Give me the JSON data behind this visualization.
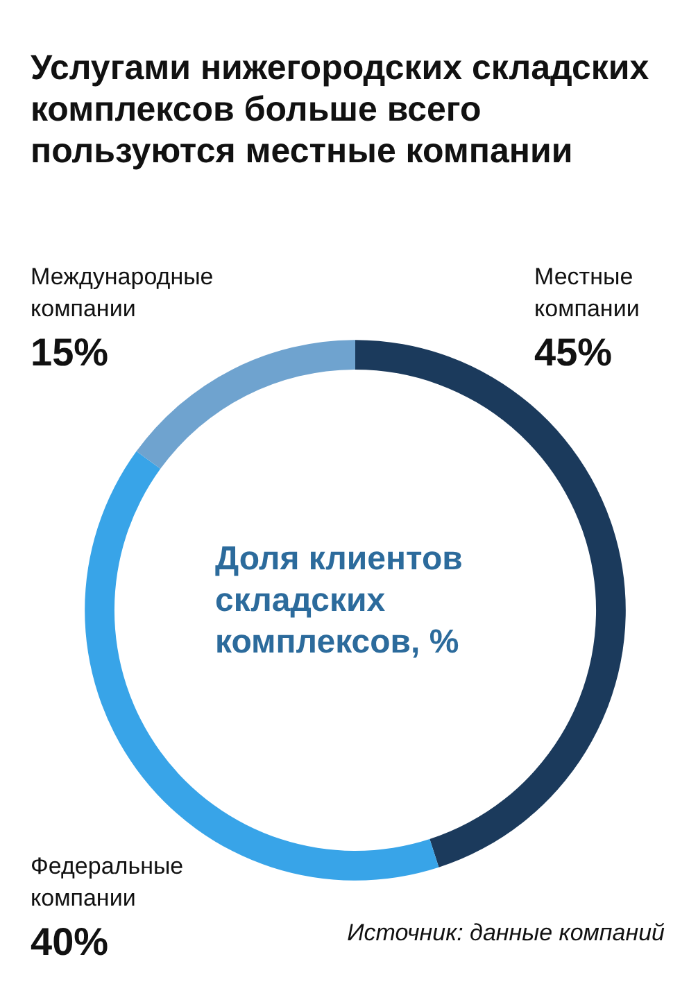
{
  "chart_data": {
    "type": "donut",
    "title": "Услугами нижегородских складских комплексов больше всего пользуются местные компании",
    "subtitle": "Доля клиентов складских комплексов, %",
    "categories": [
      "Местные компании",
      "Федеральные компании",
      "Международные компании"
    ],
    "values": [
      45,
      40,
      15
    ],
    "colors": [
      "#1b3a5c",
      "#38a4e8",
      "#6fa3cf"
    ],
    "value_labels": [
      "45%",
      "40%",
      "15%"
    ],
    "legend": false,
    "annotations": [
      "Источник: данные компаний"
    ]
  }
}
